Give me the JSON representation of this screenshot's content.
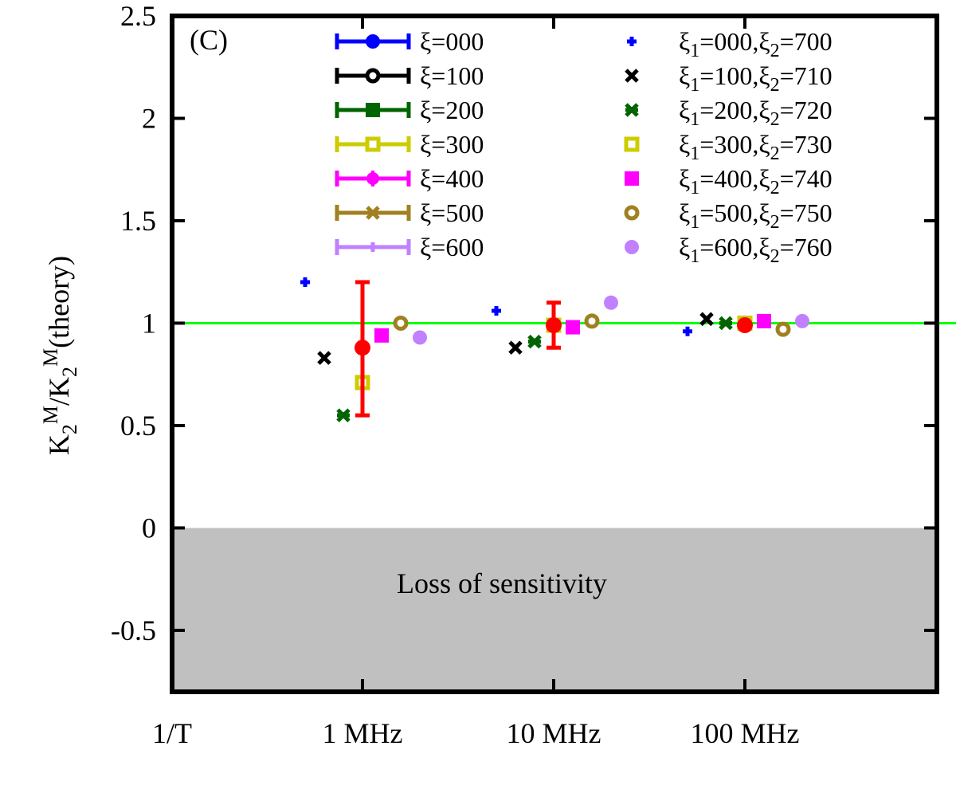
{
  "chart_data": {
    "type": "scatter",
    "panel_label": "(C)",
    "ylabel": {
      "base": "K",
      "sub1": "2",
      "sup1": "M",
      "slash": "/K",
      "sub2": "2",
      "sup2": "M",
      "rest": "(theory)"
    },
    "xlabel": "",
    "ylim": [
      -0.8,
      2.5
    ],
    "xlim": [
      0,
      4
    ],
    "y_ticks": [
      {
        "value": 2.5,
        "label": "2.5"
      },
      {
        "value": 2,
        "label": "2"
      },
      {
        "value": 1.5,
        "label": "1.5"
      },
      {
        "value": 1,
        "label": "1"
      },
      {
        "value": 0.5,
        "label": "0.5"
      },
      {
        "value": 0,
        "label": "0"
      },
      {
        "value": -0.5,
        "label": "-0.5"
      }
    ],
    "x_ticks": [
      {
        "value": 0,
        "label": "1/T"
      },
      {
        "value": 1,
        "label": "1 MHz"
      },
      {
        "value": 2,
        "label": "10 MHz"
      },
      {
        "value": 3,
        "label": "100 MHz"
      }
    ],
    "reference_line": {
      "y": 1,
      "color": "#00ff00"
    },
    "shaded_region": {
      "y_from": -0.8,
      "y_to": 0,
      "label": "Loss of sensitivity",
      "color": "#c0c0c0"
    },
    "legend_left": [
      {
        "sym": "ξ",
        "text": "=000",
        "color": "#0000ff",
        "marker": "circle-filled"
      },
      {
        "sym": "ξ",
        "text": "=100",
        "color": "#000000",
        "marker": "circle-open"
      },
      {
        "sym": "ξ",
        "text": "=200",
        "color": "#006400",
        "marker": "square-filled"
      },
      {
        "sym": "ξ",
        "text": "=300",
        "color": "#cccc00",
        "marker": "square-open"
      },
      {
        "sym": "ξ",
        "text": "=400",
        "color": "#ff00ff",
        "marker": "plus-filled"
      },
      {
        "sym": "ξ",
        "text": "=500",
        "color": "#a08020",
        "marker": "x"
      },
      {
        "sym": "ξ",
        "text": "=600",
        "color": "#c080ff",
        "marker": "plus"
      }
    ],
    "legend_right": [
      {
        "sym1": "ξ",
        "sub1": "1",
        "mid": "=000,",
        "sym2": "ξ",
        "sub2": "2",
        "tail": "=700",
        "color": "#0000ff",
        "marker": "plus"
      },
      {
        "sym1": "ξ",
        "sub1": "1",
        "mid": "=100,",
        "sym2": "ξ",
        "sub2": "2",
        "tail": "=710",
        "color": "#000000",
        "marker": "x"
      },
      {
        "sym1": "ξ",
        "sub1": "1",
        "mid": "=200,",
        "sym2": "ξ",
        "sub2": "2",
        "tail": "=720",
        "color": "#006400",
        "marker": "star"
      },
      {
        "sym1": "ξ",
        "sub1": "1",
        "mid": "=300,",
        "sym2": "ξ",
        "sub2": "2",
        "tail": "=730",
        "color": "#cccc00",
        "marker": "square-open"
      },
      {
        "sym1": "ξ",
        "sub1": "1",
        "mid": "=400,",
        "sym2": "ξ",
        "sub2": "2",
        "tail": "=740",
        "color": "#ff00ff",
        "marker": "square-filled"
      },
      {
        "sym1": "ξ",
        "sub1": "1",
        "mid": "=500,",
        "sym2": "ξ",
        "sub2": "2",
        "tail": "=750",
        "color": "#a08020",
        "marker": "circle-open"
      },
      {
        "sym1": "ξ",
        "sub1": "1",
        "mid": "=600,",
        "sym2": "ξ",
        "sub2": "2",
        "tail": "=760",
        "color": "#c080ff",
        "marker": "circle-filled"
      }
    ],
    "points": [
      {
        "x": 0.7,
        "y": 1.2,
        "color": "#0000ff",
        "marker": "plus"
      },
      {
        "x": 0.8,
        "y": 0.83,
        "color": "#000000",
        "marker": "x"
      },
      {
        "x": 0.9,
        "y": 0.55,
        "color": "#006400",
        "marker": "star"
      },
      {
        "x": 1.0,
        "y": 0.71,
        "color": "#cccc00",
        "marker": "square-open"
      },
      {
        "x": 1.1,
        "y": 0.94,
        "color": "#ff00ff",
        "marker": "square-filled"
      },
      {
        "x": 1.2,
        "y": 1.0,
        "color": "#a08020",
        "marker": "circle-open"
      },
      {
        "x": 1.3,
        "y": 0.93,
        "color": "#c080ff",
        "marker": "circle-filled"
      },
      {
        "x": 1.7,
        "y": 1.06,
        "color": "#0000ff",
        "marker": "plus"
      },
      {
        "x": 1.8,
        "y": 0.88,
        "color": "#000000",
        "marker": "x"
      },
      {
        "x": 1.9,
        "y": 0.91,
        "color": "#006400",
        "marker": "star"
      },
      {
        "x": 2.0,
        "y": 0.99,
        "color": "#cccc00",
        "marker": "square-open"
      },
      {
        "x": 2.1,
        "y": 0.98,
        "color": "#ff00ff",
        "marker": "square-filled"
      },
      {
        "x": 2.2,
        "y": 1.01,
        "color": "#a08020",
        "marker": "circle-open"
      },
      {
        "x": 2.3,
        "y": 1.1,
        "color": "#c080ff",
        "marker": "circle-filled"
      },
      {
        "x": 2.7,
        "y": 0.96,
        "color": "#0000ff",
        "marker": "plus"
      },
      {
        "x": 2.8,
        "y": 1.02,
        "color": "#000000",
        "marker": "x"
      },
      {
        "x": 2.9,
        "y": 1.0,
        "color": "#006400",
        "marker": "star"
      },
      {
        "x": 3.0,
        "y": 1.0,
        "color": "#cccc00",
        "marker": "square-open"
      },
      {
        "x": 3.1,
        "y": 1.01,
        "color": "#ff00ff",
        "marker": "square-filled"
      },
      {
        "x": 3.2,
        "y": 0.97,
        "color": "#a08020",
        "marker": "circle-open"
      },
      {
        "x": 3.3,
        "y": 1.01,
        "color": "#c080ff",
        "marker": "circle-filled"
      }
    ],
    "error_points": [
      {
        "x": 1.0,
        "y": 0.88,
        "low": 0.55,
        "high": 1.2,
        "color": "#ff0000"
      },
      {
        "x": 2.0,
        "y": 0.99,
        "low": 0.88,
        "high": 1.1,
        "color": "#ff0000"
      },
      {
        "x": 3.0,
        "y": 0.99,
        "low": 0.99,
        "high": 0.99,
        "color": "#ff0000"
      }
    ]
  }
}
